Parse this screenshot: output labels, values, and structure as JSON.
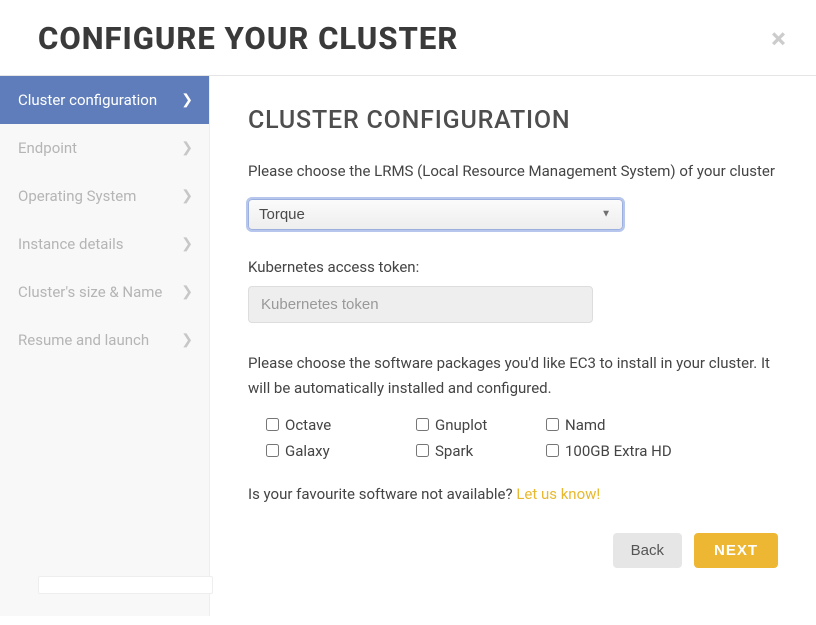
{
  "modal": {
    "title": "CONFIGURE YOUR CLUSTER",
    "close_glyph": "×"
  },
  "sidebar": {
    "items": [
      {
        "label": "Cluster configuration",
        "active": true
      },
      {
        "label": "Endpoint",
        "active": false
      },
      {
        "label": "Operating System",
        "active": false
      },
      {
        "label": "Instance details",
        "active": false
      },
      {
        "label": "Cluster's size & Name",
        "active": false
      },
      {
        "label": "Resume and launch",
        "active": false
      }
    ]
  },
  "section": {
    "title": "CLUSTER CONFIGURATION",
    "lrms_desc": "Please choose the LRMS (Local Resource Management System) of your cluster",
    "lrms_selected": "Torque",
    "token_label": "Kubernetes access token:",
    "token_placeholder": "Kubernetes token",
    "packages_desc": "Please choose the software packages you'd like EC3 to install in your cluster. It will be automatically installed and configured.",
    "packages": [
      "Octave",
      "Gnuplot",
      "Namd",
      "Galaxy",
      "Spark",
      "100GB Extra HD"
    ],
    "fav_text": "Is your favourite software not available? ",
    "fav_link": "Let us know!"
  },
  "footer": {
    "back": "Back",
    "next": "NEXT"
  },
  "colors": {
    "sidebar_active_bg": "#5f7dba",
    "next_bg": "#edb734",
    "link": "#e8b92e"
  }
}
